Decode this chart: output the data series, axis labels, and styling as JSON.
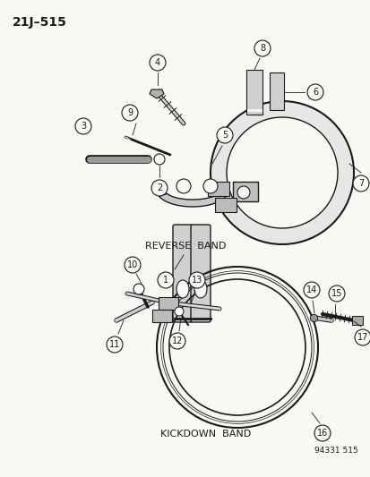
{
  "title": "21J–515",
  "bg_color": "#f5f5f0",
  "line_color": "#1a1a1a",
  "gray_fill": "#c8c8c8",
  "light_gray": "#e0e0e0",
  "reverse_band_label": "REVERSE  BAND",
  "kickdown_band_label": "KICKDOWN  BAND",
  "footer": "94331 515",
  "title_fontsize": 10,
  "label_fontsize": 7.5
}
